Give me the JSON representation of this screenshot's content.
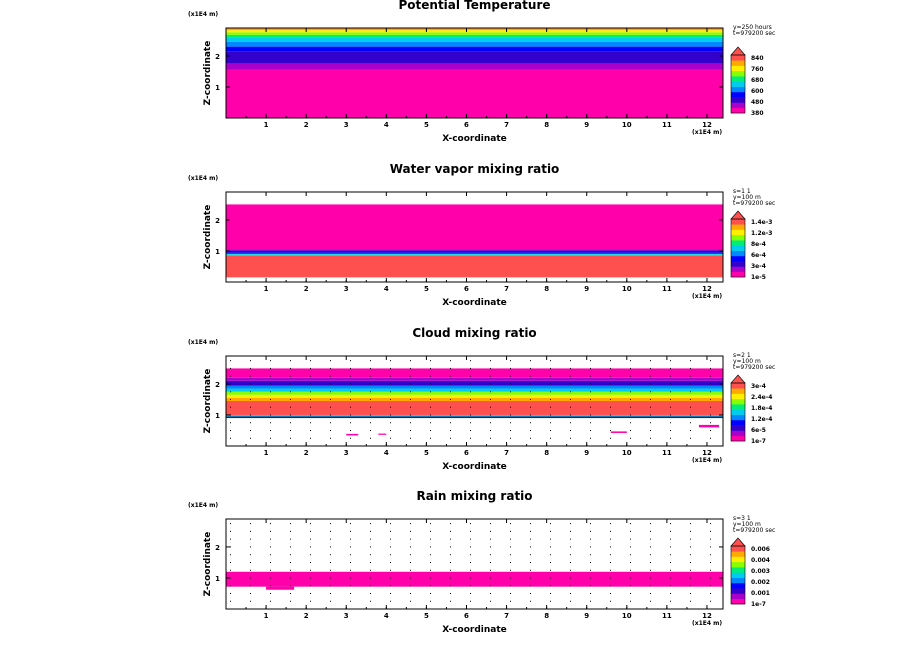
{
  "chart_data": [
    {
      "type": "contour",
      "title": "Potential Temperature",
      "xlabel": "X-coordinate",
      "ylabel": "Z-coordinate",
      "x_unit": "(x1E4 m)",
      "z_unit": "(x1E4 m)",
      "xlim": [
        0,
        12.4
      ],
      "zlim": [
        0,
        2.9
      ],
      "xticks": [
        "1",
        "2",
        "3",
        "4",
        "5",
        "6",
        "7",
        "8",
        "9",
        "10",
        "11",
        "12"
      ],
      "zticks": [
        "1",
        "2"
      ],
      "info": [
        "y=250 hours",
        "t=979200 sec"
      ],
      "legend": [
        "840",
        "760",
        "680",
        "600",
        "480",
        "380"
      ],
      "colors": [
        "#ff00aa",
        "#aa00cc",
        "#3300cc",
        "#0000ff",
        "#0088ff",
        "#00ccee",
        "#00ee77",
        "#88ff00",
        "#ffee00",
        "#ffaa00",
        "#ff5050"
      ],
      "bands": [
        {
          "from": 0,
          "to": 1.55,
          "level": 0
        },
        {
          "from": 1.55,
          "to": 1.75,
          "level": 1
        },
        {
          "from": 1.75,
          "to": 2.15,
          "level": 2
        },
        {
          "from": 2.15,
          "to": 2.3,
          "level": 3
        },
        {
          "from": 2.3,
          "to": 2.45,
          "level": 4
        },
        {
          "from": 2.45,
          "to": 2.58,
          "level": 5
        },
        {
          "from": 2.58,
          "to": 2.68,
          "level": 6
        },
        {
          "from": 2.68,
          "to": 2.76,
          "level": 7
        },
        {
          "from": 2.76,
          "to": 2.83,
          "level": 8
        },
        {
          "from": 2.83,
          "to": 2.88,
          "level": 9
        },
        {
          "from": 2.88,
          "to": 2.9,
          "level": 10
        }
      ],
      "dots": false
    },
    {
      "type": "contour",
      "title": "Water vapor mixing ratio",
      "xlabel": "X-coordinate",
      "ylabel": "Z-coordinate",
      "x_unit": "(x1E4 m)",
      "z_unit": "(x1E4 m)",
      "xlim": [
        0,
        12.4
      ],
      "zlim": [
        0,
        2.9
      ],
      "xticks": [
        "1",
        "2",
        "3",
        "4",
        "5",
        "6",
        "7",
        "8",
        "9",
        "10",
        "11",
        "12"
      ],
      "zticks": [
        "1",
        "2"
      ],
      "info": [
        "s=1 1",
        "y=100 m",
        "t=979200 sec"
      ],
      "legend": [
        "1.4e-3",
        "1.2e-3",
        "8e-4",
        "6e-4",
        "3e-4",
        "1e-5"
      ],
      "colors": [
        "#ff00aa",
        "#aa00cc",
        "#3300cc",
        "#0000ff",
        "#0088ff",
        "#00ccee",
        "#00ee77",
        "#88ff00",
        "#ffee00",
        "#ffaa00",
        "#ff5050"
      ],
      "bands": [
        {
          "from": 0.15,
          "to": 0.85,
          "level": 10
        },
        {
          "from": 0.85,
          "to": 0.88,
          "level": 6
        },
        {
          "from": 0.88,
          "to": 0.91,
          "level": 5
        },
        {
          "from": 0.91,
          "to": 0.96,
          "level": 3
        },
        {
          "from": 0.96,
          "to": 1.02,
          "level": 2
        },
        {
          "from": 1.02,
          "to": 1.06,
          "level": 1
        },
        {
          "from": 1.06,
          "to": 2.5,
          "level": 0
        }
      ],
      "dots": false
    },
    {
      "type": "contour",
      "title": "Cloud mixing ratio",
      "xlabel": "X-coordinate",
      "ylabel": "Z-coordinate",
      "x_unit": "(x1E4 m)",
      "z_unit": "(x1E4 m)",
      "xlim": [
        0,
        12.4
      ],
      "zlim": [
        0,
        2.9
      ],
      "xticks": [
        "1",
        "2",
        "3",
        "4",
        "5",
        "6",
        "7",
        "8",
        "9",
        "10",
        "11",
        "12"
      ],
      "zticks": [
        "1",
        "2"
      ],
      "info": [
        "s=2 1",
        "y=100 m",
        "t=979200 sec"
      ],
      "legend": [
        "3e-4",
        "2.4e-4",
        "1.8e-4",
        "1.2e-4",
        "6e-5",
        "1e-7"
      ],
      "colors": [
        "#ff00aa",
        "#aa00cc",
        "#3300cc",
        "#0000ff",
        "#0088ff",
        "#00ccee",
        "#00ee77",
        "#88ff00",
        "#ffee00",
        "#ffaa00",
        "#ff5050"
      ],
      "bands": [
        {
          "from": 0.9,
          "to": 0.95,
          "level": 3
        },
        {
          "from": 0.95,
          "to": 1.0,
          "level": 6
        },
        {
          "from": 1.0,
          "to": 1.45,
          "level": 10
        },
        {
          "from": 1.45,
          "to": 1.55,
          "level": 9
        },
        {
          "from": 1.55,
          "to": 1.65,
          "level": 8
        },
        {
          "from": 1.65,
          "to": 1.75,
          "level": 7
        },
        {
          "from": 1.75,
          "to": 1.85,
          "level": 5
        },
        {
          "from": 1.85,
          "to": 1.95,
          "level": 4
        },
        {
          "from": 1.95,
          "to": 2.1,
          "level": 2
        },
        {
          "from": 2.1,
          "to": 2.2,
          "level": 1
        },
        {
          "from": 2.2,
          "to": 2.5,
          "level": 0
        }
      ],
      "patches": [
        {
          "x": [
            3.0,
            3.3
          ],
          "z": [
            0.34,
            0.39
          ]
        },
        {
          "x": [
            3.8,
            4.0
          ],
          "z": [
            0.36,
            0.4
          ]
        },
        {
          "x": [
            9.6,
            10.0
          ],
          "z": [
            0.42,
            0.47
          ]
        },
        {
          "x": [
            11.8,
            12.3
          ],
          "z": [
            0.6,
            0.68
          ]
        }
      ],
      "dots": true
    },
    {
      "type": "contour",
      "title": "Rain mixing ratio",
      "xlabel": "X-coordinate",
      "ylabel": "Z-coordinate",
      "x_unit": "(x1E4 m)",
      "z_unit": "(x1E4 m)",
      "xlim": [
        0,
        12.4
      ],
      "zlim": [
        0,
        2.9
      ],
      "xticks": [
        "1",
        "2",
        "3",
        "4",
        "5",
        "6",
        "7",
        "8",
        "9",
        "10",
        "11",
        "12"
      ],
      "zticks": [
        "1",
        "2"
      ],
      "info": [
        "s=3 1",
        "y=100 m",
        "t=979200 sec"
      ],
      "legend": [
        "0.006",
        "0.004",
        "0.003",
        "0.002",
        "0.001",
        "1e-7"
      ],
      "colors": [
        "#ff00aa",
        "#aa00cc",
        "#3300cc",
        "#0000ff",
        "#0088ff",
        "#00ccee",
        "#00ee77",
        "#88ff00",
        "#ffee00",
        "#ffaa00",
        "#ff5050"
      ],
      "bands": [
        {
          "from": 0.72,
          "to": 1.2,
          "level": 0
        }
      ],
      "patches": [
        {
          "x": [
            1.0,
            1.7
          ],
          "z": [
            0.62,
            0.72
          ]
        }
      ],
      "dots": true
    }
  ]
}
